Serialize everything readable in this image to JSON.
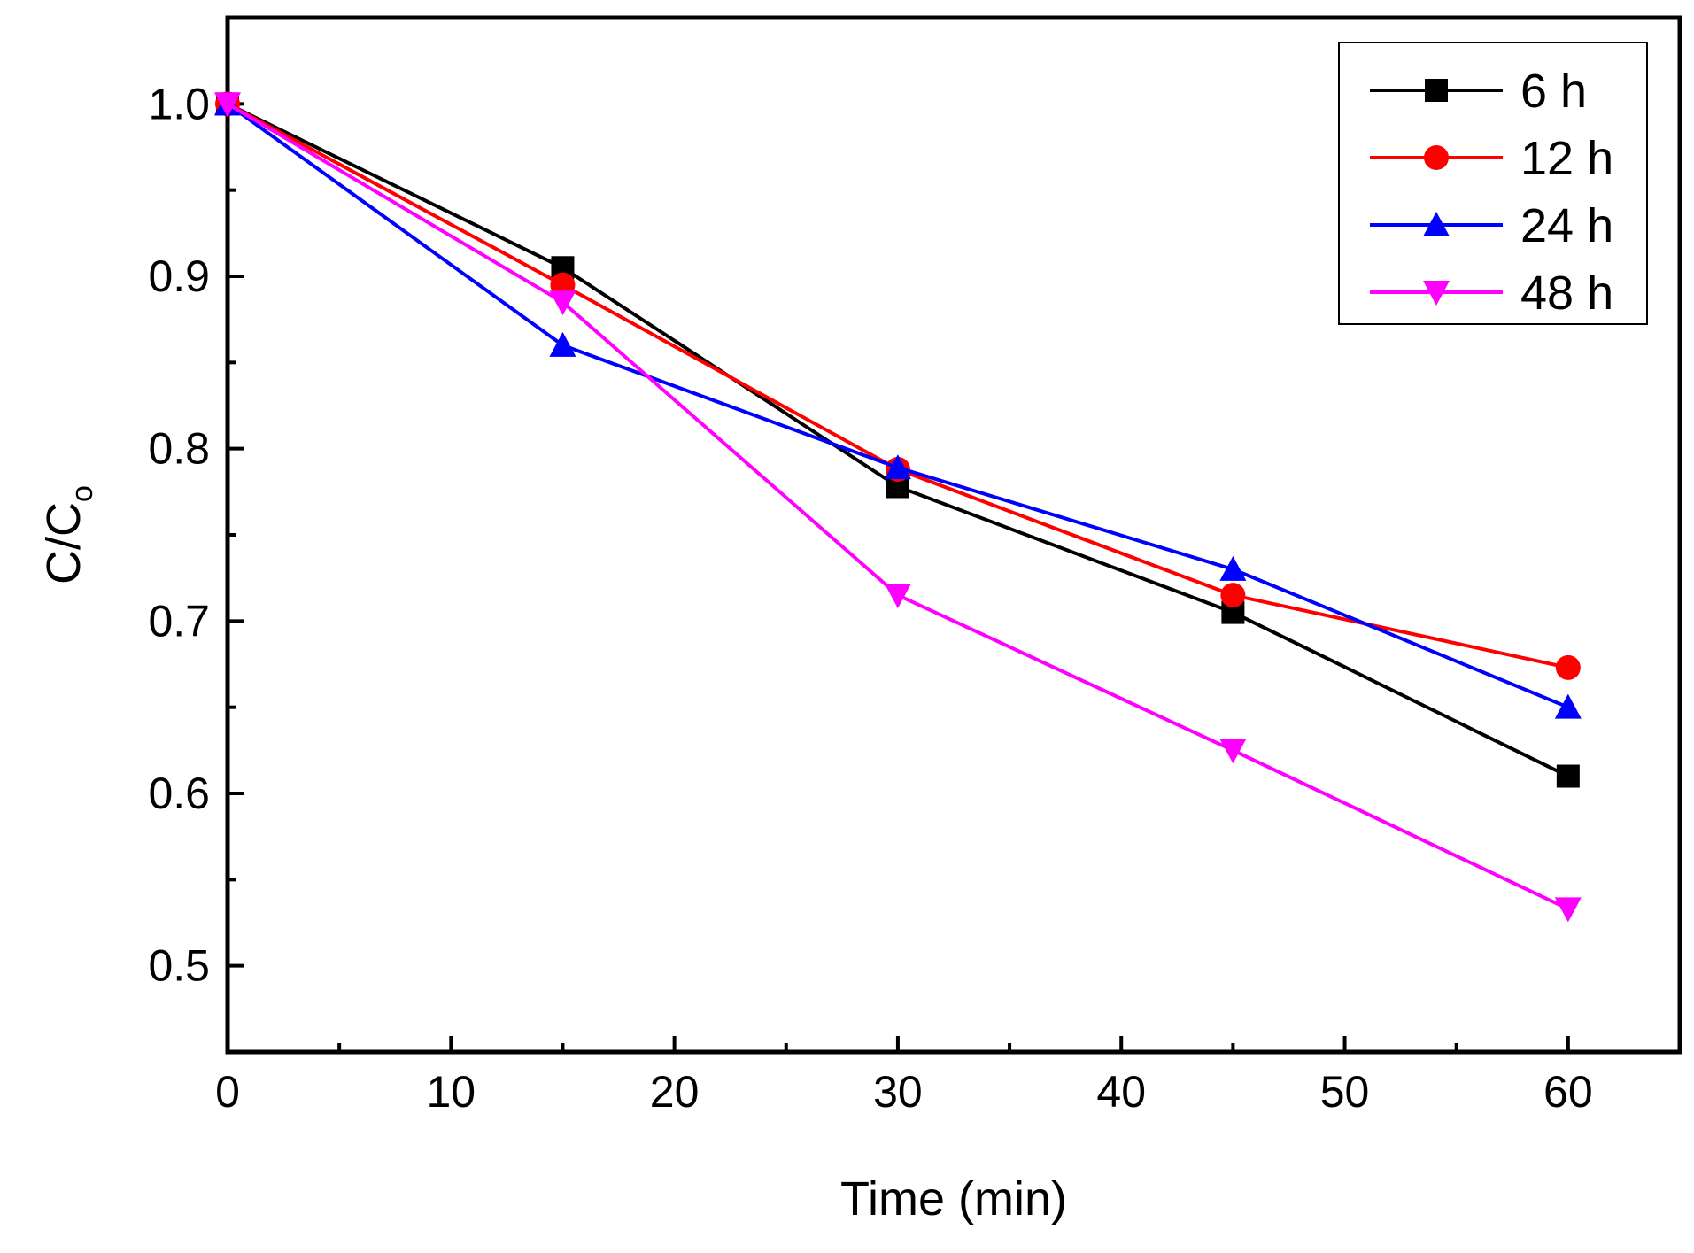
{
  "chart_data": {
    "type": "line",
    "title": "",
    "xlabel": "Time (min)",
    "ylabel_main": "C/C",
    "ylabel_sub": "o",
    "xlim": [
      0,
      65
    ],
    "ylim": [
      0.45,
      1.05
    ],
    "x_ticks": [
      0,
      10,
      20,
      30,
      40,
      50,
      60
    ],
    "x_tick_labels": [
      "0",
      "10",
      "20",
      "30",
      "40",
      "50",
      "60"
    ],
    "x_minor_ticks": [
      5,
      15,
      25,
      35,
      45,
      55,
      65
    ],
    "y_ticks": [
      0.5,
      0.6,
      0.7,
      0.8,
      0.9,
      1.0
    ],
    "y_tick_labels": [
      "0.5",
      "0.6",
      "0.7",
      "0.8",
      "0.9",
      "1.0"
    ],
    "y_minor_ticks": [
      0.45,
      0.55,
      0.65,
      0.75,
      0.85,
      0.95,
      1.05
    ],
    "grid": false,
    "legend_position": "top-right",
    "x": [
      0,
      15,
      30,
      45,
      60
    ],
    "series": [
      {
        "name": "6 h",
        "values": [
          1.0,
          0.905,
          0.778,
          0.705,
          0.61
        ],
        "color": "#000000",
        "marker": "square"
      },
      {
        "name": "12 h",
        "values": [
          1.0,
          0.895,
          0.788,
          0.715,
          0.673
        ],
        "color": "#ff0000",
        "marker": "circle"
      },
      {
        "name": "24 h",
        "values": [
          1.0,
          0.86,
          0.789,
          0.73,
          0.65
        ],
        "color": "#0000ff",
        "marker": "triangle-up"
      },
      {
        "name": "48 h",
        "values": [
          1.0,
          0.885,
          0.715,
          0.625,
          0.533
        ],
        "color": "#ff00ff",
        "marker": "triangle-down"
      }
    ]
  }
}
